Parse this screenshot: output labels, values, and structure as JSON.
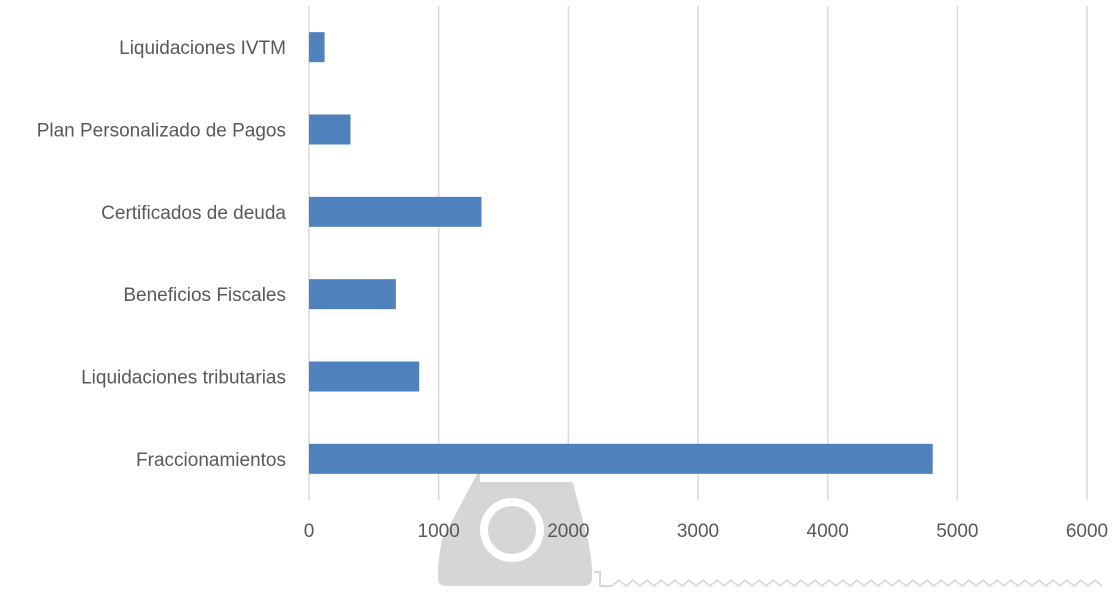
{
  "chart_data": {
    "type": "bar",
    "orientation": "horizontal",
    "categories": [
      "Liquidaciones IVTM",
      "Plan Personalizado de Pagos",
      "Certificados de deuda",
      "Beneficios Fiscales",
      "Liquidaciones tributarias",
      "Fraccionamientos"
    ],
    "values": [
      120,
      320,
      1330,
      670,
      850,
      4810
    ],
    "xlim": [
      0,
      6000
    ],
    "xticks": [
      "0",
      "1000",
      "2000",
      "3000",
      "4000",
      "5000",
      "6000"
    ],
    "title": "",
    "xlabel": "",
    "ylabel": "",
    "grid": "vertical",
    "legend": "none",
    "colors": {
      "bar": "#4F81BD",
      "grid": "#D9D9D9",
      "text": "#595959",
      "watermark": "#D6D6D6"
    }
  },
  "watermark": {
    "icon": "cash-register-icon"
  }
}
